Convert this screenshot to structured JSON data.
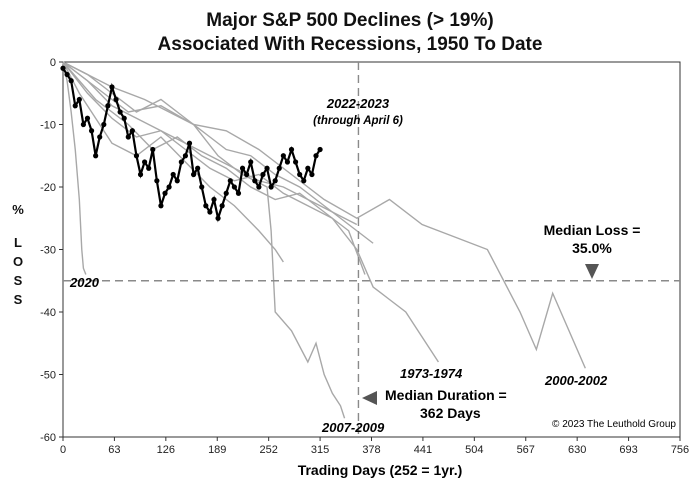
{
  "title_line1": "Major S&P 500 Declines (> 19%)",
  "title_line2": "Associated With Recessions, 1950 To Date",
  "copyright": "© 2023 The Leuthold Group",
  "annotations": {
    "current_label_1": "2022-2023",
    "current_label_2": "(through April 6)",
    "label_2020": "2020",
    "label_1973": "1973-1974",
    "label_2007": "2007-2009",
    "label_2000": "2000-2002",
    "median_loss_1": "Median Loss =",
    "median_loss_2": "35.0%",
    "median_duration_1": "Median Duration =",
    "median_duration_2": "362 Days"
  },
  "colors": {
    "history": "#a8a8a8",
    "current": "#000000",
    "reference": "#8a8a8a"
  },
  "chart_data": {
    "type": "line",
    "title": "Major S&P 500 Declines (> 19%) Associated With Recessions, 1950 To Date",
    "xlabel": "Trading Days (252 = 1yr.)",
    "ylabel": "% LOSS",
    "xlim": [
      0,
      756
    ],
    "ylim": [
      -60,
      0
    ],
    "xticks": [
      0,
      63,
      126,
      189,
      252,
      315,
      378,
      441,
      504,
      567,
      630,
      693,
      756
    ],
    "yticks": [
      0,
      -10,
      -20,
      -30,
      -40,
      -50,
      -60
    ],
    "grid": false,
    "reference_lines": [
      {
        "axis": "y",
        "value": -35.0,
        "label": "Median Loss = 35.0%"
      },
      {
        "axis": "x",
        "value": 362,
        "label": "Median Duration = 362 Days"
      }
    ],
    "series": [
      {
        "name": "2022-2023",
        "highlight": true,
        "x": [
          0,
          5,
          10,
          15,
          20,
          25,
          30,
          35,
          40,
          45,
          50,
          55,
          60,
          65,
          70,
          75,
          80,
          85,
          90,
          95,
          100,
          105,
          110,
          115,
          120,
          125,
          130,
          135,
          140,
          145,
          150,
          155,
          160,
          165,
          170,
          175,
          180,
          185,
          190,
          195,
          200,
          205,
          210,
          215,
          220,
          225,
          230,
          235,
          240,
          245,
          250,
          255,
          260,
          265,
          270,
          275,
          280,
          285,
          290,
          295,
          300,
          305,
          310,
          315
        ],
        "y": [
          -1,
          -2,
          -3,
          -7,
          -6,
          -10,
          -9,
          -11,
          -15,
          -12,
          -10,
          -7,
          -4,
          -6,
          -8,
          -9,
          -12,
          -11,
          -15,
          -18,
          -16,
          -17,
          -14,
          -19,
          -23,
          -21,
          -20,
          -18,
          -19,
          -16,
          -15,
          -13,
          -18,
          -17,
          -20,
          -23,
          -24,
          -22,
          -25,
          -23,
          -21,
          -19,
          -20,
          -21,
          -17,
          -18,
          -16,
          -19,
          -20,
          -18,
          -17,
          -20,
          -19,
          -17,
          -15,
          -16,
          -14,
          -16,
          -18,
          -19,
          -17,
          -18,
          -15,
          -14
        ]
      },
      {
        "name": "2020",
        "x": [
          0,
          5,
          10,
          15,
          20,
          23,
          25,
          28
        ],
        "y": [
          0,
          -3,
          -8,
          -14,
          -22,
          -30,
          -33,
          -34
        ]
      },
      {
        "name": "1973-1974",
        "x": [
          0,
          30,
          60,
          90,
          120,
          150,
          180,
          210,
          240,
          270,
          300,
          330,
          360,
          380,
          400,
          420,
          440,
          450,
          460
        ],
        "y": [
          0,
          -5,
          -9,
          -12,
          -11,
          -14,
          -17,
          -19,
          -18,
          -21,
          -23,
          -25,
          -30,
          -36,
          -38,
          -40,
          -44,
          -46,
          -48
        ]
      },
      {
        "name": "2007-2009",
        "x": [
          0,
          30,
          60,
          100,
          130,
          160,
          190,
          220,
          250,
          255,
          260,
          280,
          300,
          310,
          320,
          330,
          340,
          345
        ],
        "y": [
          0,
          -2,
          -4,
          -6,
          -8,
          -10,
          -15,
          -18,
          -20,
          -27,
          -40,
          -43,
          -48,
          -45,
          -50,
          -53,
          -55,
          -57
        ]
      },
      {
        "name": "2000-2002",
        "x": [
          0,
          40,
          80,
          120,
          160,
          200,
          240,
          280,
          320,
          360,
          400,
          440,
          480,
          520,
          560,
          580,
          600,
          620,
          640
        ],
        "y": [
          0,
          -4,
          -8,
          -7,
          -10,
          -11,
          -14,
          -18,
          -22,
          -25,
          -22,
          -26,
          -28,
          -30,
          -40,
          -46,
          -37,
          -43,
          -49
        ]
      },
      {
        "x": [
          0,
          30,
          60,
          90,
          120,
          150,
          180,
          210,
          240,
          270,
          300,
          330,
          360
        ],
        "y": [
          0,
          -3,
          -7,
          -9,
          -11,
          -13,
          -15,
          -17,
          -19,
          -20,
          -22,
          -24,
          -26
        ]
      },
      {
        "x": [
          0,
          30,
          60,
          90,
          120,
          150,
          180,
          200,
          230,
          260,
          290,
          320,
          350,
          380
        ],
        "y": [
          0,
          -2,
          -5,
          -8,
          -6,
          -9,
          -12,
          -14,
          -15,
          -18,
          -20,
          -23,
          -26,
          -29
        ]
      },
      {
        "x": [
          0,
          40,
          80,
          110,
          140,
          170,
          200,
          230,
          260,
          290,
          320,
          350,
          370
        ],
        "y": [
          0,
          -6,
          -10,
          -14,
          -12,
          -15,
          -17,
          -20,
          -22,
          -21,
          -24,
          -27,
          -34
        ]
      },
      {
        "x": [
          0,
          20,
          40,
          60,
          90,
          120,
          150,
          180,
          210,
          240,
          260,
          270
        ],
        "y": [
          0,
          -5,
          -9,
          -13,
          -15,
          -12,
          -16,
          -20,
          -23,
          -27,
          -30,
          -32
        ]
      }
    ]
  }
}
